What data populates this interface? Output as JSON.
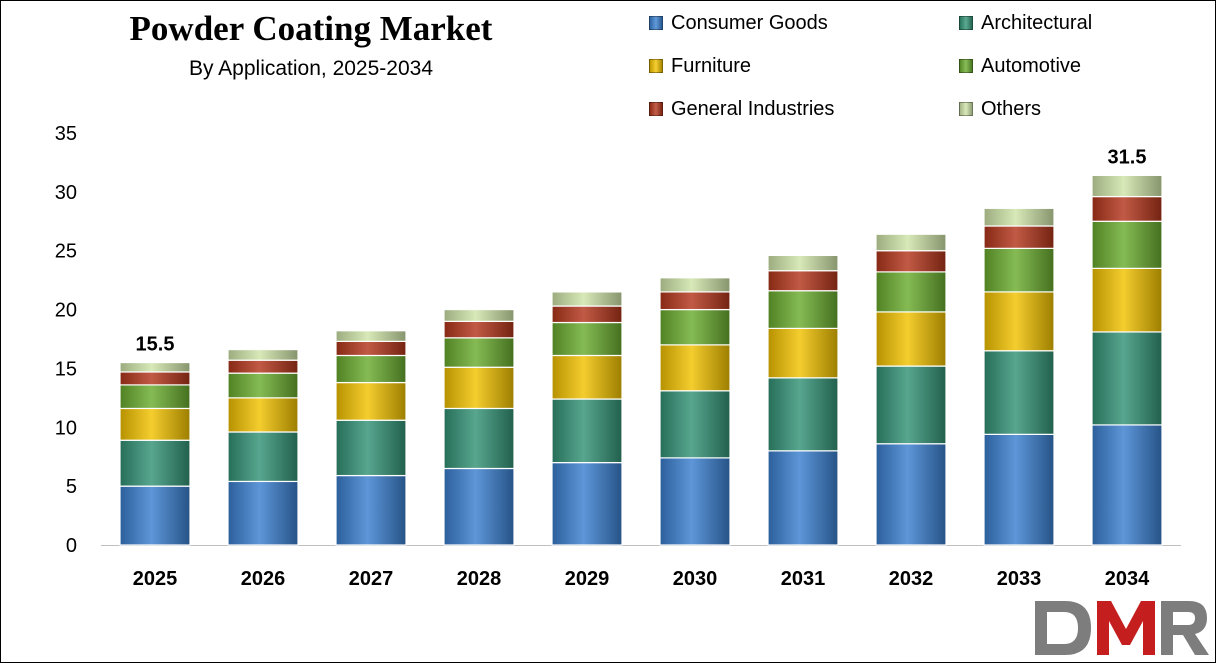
{
  "chart_data": {
    "type": "bar",
    "stacked": true,
    "title": "Powder Coating Market",
    "subtitle": "By Application, 2025-2034",
    "categories": [
      "2025",
      "2026",
      "2027",
      "2028",
      "2029",
      "2030",
      "2031",
      "2032",
      "2033",
      "2034"
    ],
    "series": [
      {
        "name": "Consumer Goods",
        "color": "#3a7fcf",
        "values": [
          5.0,
          5.4,
          5.9,
          6.5,
          7.0,
          7.4,
          8.0,
          8.6,
          9.4,
          10.2
        ]
      },
      {
        "name": "Architectural",
        "color": "#339377",
        "values": [
          3.9,
          4.2,
          4.7,
          5.1,
          5.4,
          5.7,
          6.2,
          6.6,
          7.1,
          7.9
        ]
      },
      {
        "name": "Furniture",
        "color": "#f2c200",
        "values": [
          2.7,
          2.9,
          3.2,
          3.5,
          3.7,
          3.9,
          4.2,
          4.6,
          5.0,
          5.4
        ]
      },
      {
        "name": "Automotive",
        "color": "#6aac2f",
        "values": [
          2.0,
          2.1,
          2.3,
          2.5,
          2.8,
          3.0,
          3.2,
          3.4,
          3.7,
          4.0
        ]
      },
      {
        "name": "General Industries",
        "color": "#b3361c",
        "values": [
          1.1,
          1.1,
          1.2,
          1.4,
          1.4,
          1.5,
          1.7,
          1.8,
          1.9,
          2.1
        ]
      },
      {
        "name": "Others",
        "color": "#cfe4a8",
        "values": [
          0.8,
          0.9,
          0.9,
          1.0,
          1.2,
          1.2,
          1.3,
          1.4,
          1.5,
          1.8
        ]
      }
    ],
    "ylim": [
      0,
      35
    ],
    "yticks": [
      0,
      5,
      10,
      15,
      20,
      25,
      30,
      35
    ],
    "grid": false,
    "legend_position": "top-right",
    "annotations": [
      {
        "category": "2025",
        "text": "15.5"
      },
      {
        "category": "2034",
        "text": "31.5"
      }
    ]
  },
  "logo": {
    "text": "DMR",
    "colors": [
      "#7d7d7d",
      "#c41e1e"
    ]
  }
}
